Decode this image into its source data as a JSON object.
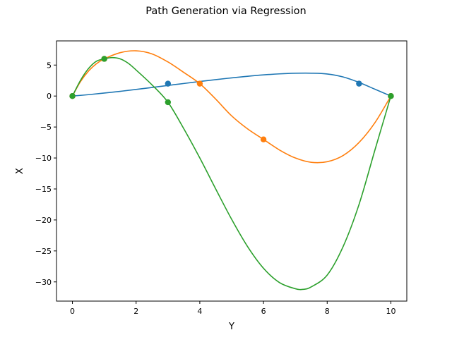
{
  "chart_data": {
    "type": "line",
    "title": "Path Generation via Regression",
    "xlabel": "Y",
    "ylabel": "X",
    "xlim": [
      -0.5,
      10.5
    ],
    "ylim": [
      -33.1,
      8.9
    ],
    "xticks": [
      0,
      2,
      4,
      6,
      8,
      10
    ],
    "yticks": [
      5,
      0,
      -5,
      -10,
      -15,
      -20,
      -25,
      -30
    ],
    "ytick_labels": [
      "5",
      "0",
      "−5",
      "−10",
      "−15",
      "−20",
      "−25",
      "−30"
    ],
    "grid": false,
    "series": [
      {
        "color": "#1f77b4",
        "points_x": [
          0,
          3,
          9,
          10
        ],
        "points_y": [
          0,
          2,
          2,
          0
        ],
        "curve_x": [
          0,
          0.5,
          1,
          1.5,
          2,
          2.5,
          3,
          3.5,
          4,
          4.5,
          5,
          5.5,
          6,
          6.5,
          7,
          7.5,
          8,
          8.5,
          9,
          9.5,
          10
        ],
        "curve_y": [
          0,
          0.22,
          0.48,
          0.76,
          1.07,
          1.38,
          1.71,
          2.03,
          2.35,
          2.65,
          2.93,
          3.19,
          3.41,
          3.58,
          3.68,
          3.69,
          3.56,
          3.08,
          2.2,
          1.1,
          0
        ]
      },
      {
        "color": "#ff7f0e",
        "points_x": [
          0,
          1,
          4,
          6,
          10
        ],
        "points_y": [
          0,
          6,
          2,
          -7,
          0
        ],
        "curve_x": [
          0,
          0.25,
          0.5,
          0.75,
          1,
          1.5,
          2,
          2.5,
          3,
          3.5,
          4,
          4.5,
          5,
          5.5,
          6,
          6.5,
          7,
          7.5,
          8,
          8.5,
          9,
          9.5,
          10
        ],
        "curve_y": [
          0,
          2.3,
          4.0,
          5.2,
          6.0,
          7.0,
          7.3,
          6.8,
          5.5,
          3.8,
          2.0,
          -0.5,
          -3.2,
          -5.3,
          -7.0,
          -8.7,
          -10.0,
          -10.7,
          -10.6,
          -9.6,
          -7.5,
          -4.3,
          0
        ]
      },
      {
        "color": "#2ca02c",
        "points_x": [
          0,
          1,
          3,
          10
        ],
        "points_y": [
          0,
          6,
          -1,
          0
        ],
        "curve_x": [
          0,
          0.25,
          0.5,
          0.75,
          1,
          1.25,
          1.5,
          1.75,
          2,
          2.5,
          3,
          3.5,
          4,
          4.5,
          5,
          5.5,
          6,
          6.5,
          7,
          7.25,
          7.5,
          8,
          8.5,
          9,
          9.5,
          10
        ],
        "curve_y": [
          0,
          2.5,
          4.4,
          5.6,
          6.0,
          6.2,
          6.0,
          5.3,
          4.2,
          1.8,
          -1.0,
          -5.3,
          -10.0,
          -15.0,
          -19.9,
          -24.3,
          -27.8,
          -30.1,
          -31.1,
          -31.2,
          -30.8,
          -28.9,
          -24.3,
          -17.5,
          -8.7,
          0
        ]
      }
    ]
  }
}
